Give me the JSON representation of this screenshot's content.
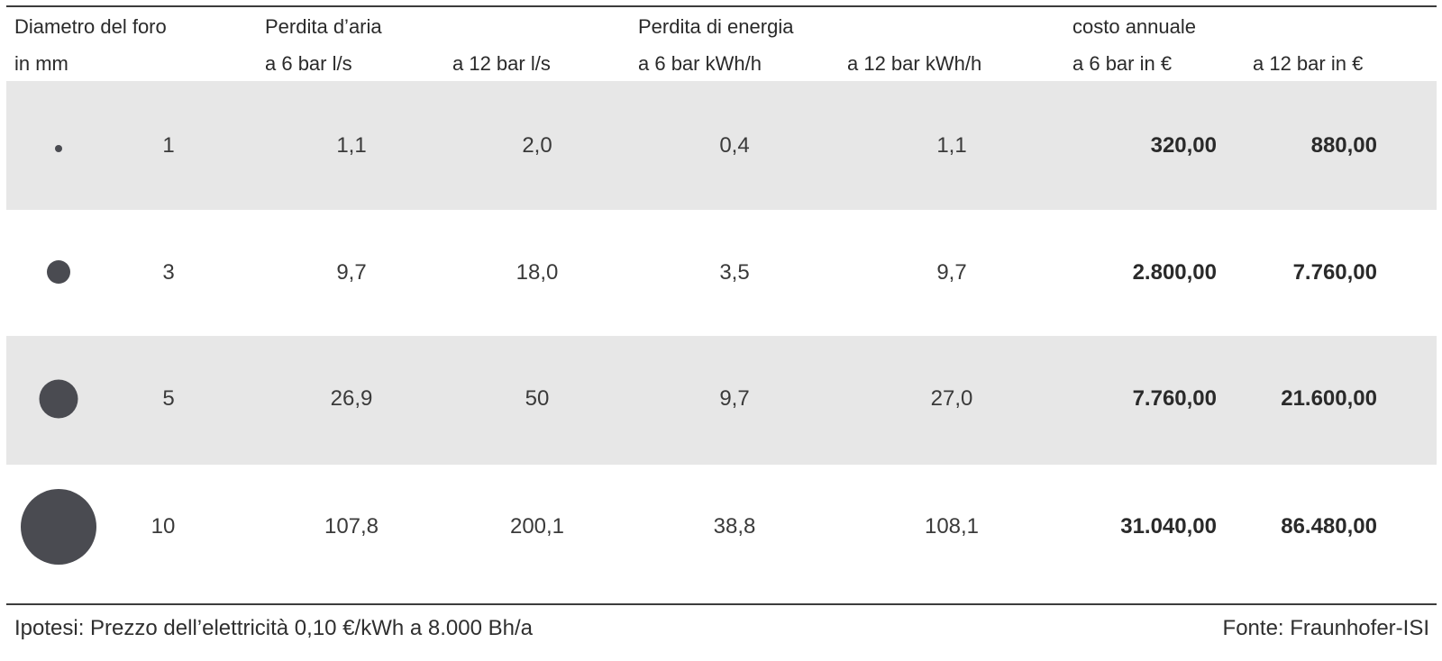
{
  "header": {
    "col1_line1": "Diametro del foro",
    "col1_line2": "in mm",
    "group_air": "Perdita d’aria",
    "air_6": "a 6 bar l/s",
    "air_12": "a 12 bar l/s",
    "group_energy": "Perdita di energia",
    "energy_6": "a 6 bar kWh/h",
    "energy_12": "a 12 bar kWh/h",
    "group_cost": "costo annuale",
    "cost_6": "a 6 bar in €",
    "cost_12": "a 12 bar in €"
  },
  "rows": [
    {
      "diameter": "1",
      "air_6": "1,1",
      "air_12": "2,0",
      "energy_6": "0,4",
      "energy_12": "1,1",
      "cost_6": "320,00",
      "cost_12": "880,00"
    },
    {
      "diameter": "3",
      "air_6": "9,7",
      "air_12": "18,0",
      "energy_6": "3,5",
      "energy_12": "9,7",
      "cost_6": "2.800,00",
      "cost_12": "7.760,00"
    },
    {
      "diameter": "5",
      "air_6": "26,9",
      "air_12": "50",
      "energy_6": "9,7",
      "energy_12": "27,0",
      "cost_6": "7.760,00",
      "cost_12": "21.600,00"
    },
    {
      "diameter": "10",
      "air_6": "107,8",
      "air_12": "200,1",
      "energy_6": "38,8",
      "energy_12": "108,1",
      "cost_6": "31.040,00",
      "cost_12": "86.480,00"
    }
  ],
  "footer": {
    "assumption": "Ipotesi: Prezzo dell’elettricità 0,10 €/kWh a 8.000 Bh/a",
    "source": "Fonte: Fraunhofer-ISI"
  },
  "colors": {
    "shaded_row": "#e7e7e7",
    "hole_dot": "#4a4b51",
    "rule": "#3c3c3c"
  }
}
